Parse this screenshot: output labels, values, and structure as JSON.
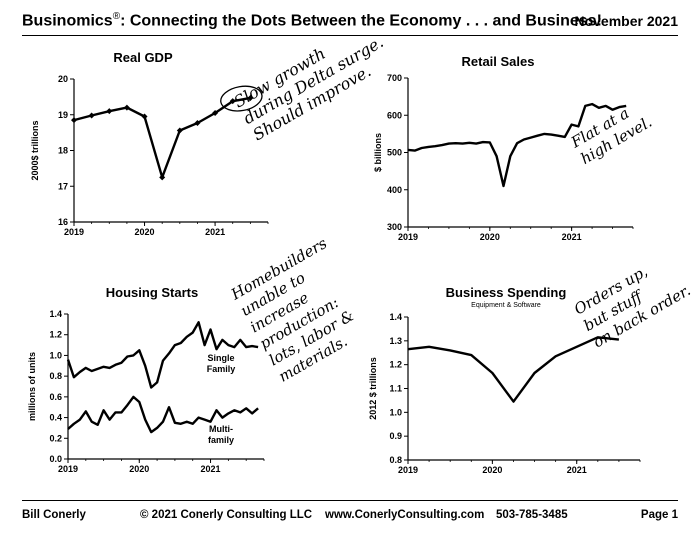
{
  "header": {
    "title_main": "Businomics",
    "title_mark": "®",
    "title_rest": ": Connecting the Dots Between the Economy . . . and Business!",
    "date": "November 2021"
  },
  "footer": {
    "author": "Bill Conerly",
    "copyright": "© 2021 Conerly Consulting LLC",
    "website": "www.ConerlyConsulting.com",
    "phone": "503-785-3485",
    "page": "Page 1"
  },
  "chart_data": [
    {
      "type": "line",
      "title": "Real GDP",
      "ylabel": "2000$ trillions",
      "ylim": [
        16,
        20
      ],
      "yticks": [
        "16",
        "17",
        "18",
        "19",
        "20"
      ],
      "xlim": [
        2019,
        2021.75
      ],
      "xticks": [
        "2019",
        "2020",
        "2021"
      ],
      "markers": true,
      "x": [
        2019.0,
        2019.25,
        2019.5,
        2019.75,
        2020.0,
        2020.25,
        2020.5,
        2020.75,
        2021.0,
        2021.25,
        2021.5
      ],
      "series": [
        {
          "values": [
            18.85,
            18.98,
            19.1,
            19.2,
            18.95,
            17.25,
            18.56,
            18.77,
            19.05,
            19.38,
            19.47
          ]
        }
      ],
      "annotation": {
        "lines": [
          "Slow growth",
          "during Delta surge.",
          "Should improve."
        ],
        "circled_points": [
          9,
          10
        ]
      }
    },
    {
      "type": "line",
      "title": "Retail Sales",
      "ylabel": "$ billions",
      "ylim": [
        300,
        700
      ],
      "yticks": [
        "300",
        "400",
        "500",
        "600",
        "700"
      ],
      "xlim": [
        2019,
        2021.75
      ],
      "xticks": [
        "2019",
        "2020",
        "2021"
      ],
      "x": [
        2019.0,
        2019.083,
        2019.167,
        2019.25,
        2019.333,
        2019.417,
        2019.5,
        2019.583,
        2019.667,
        2019.75,
        2019.833,
        2019.917,
        2020.0,
        2020.083,
        2020.167,
        2020.25,
        2020.333,
        2020.417,
        2020.5,
        2020.583,
        2020.667,
        2020.75,
        2020.833,
        2020.917,
        2021.0,
        2021.083,
        2021.167,
        2021.25,
        2021.333,
        2021.417,
        2021.5,
        2021.583,
        2021.667
      ],
      "series": [
        {
          "values": [
            507,
            505,
            512,
            515,
            517,
            520,
            524,
            525,
            524,
            526,
            524,
            528,
            527,
            490,
            410,
            490,
            525,
            535,
            540,
            545,
            550,
            548,
            545,
            542,
            575,
            570,
            625,
            630,
            620,
            625,
            615,
            622,
            625
          ]
        }
      ],
      "annotation": {
        "lines": [
          "Flat at a",
          "high level."
        ]
      }
    },
    {
      "type": "line",
      "title": "Housing Starts",
      "ylabel": "millions of units",
      "ylim": [
        0,
        1.4
      ],
      "yticks": [
        "0.0",
        "0.2",
        "0.4",
        "0.6",
        "0.8",
        "1.0",
        "1.2",
        "1.4"
      ],
      "xlim": [
        2019,
        2021.75
      ],
      "xticks": [
        "2019",
        "2020",
        "2021"
      ],
      "x": [
        2019.0,
        2019.083,
        2019.167,
        2019.25,
        2019.333,
        2019.417,
        2019.5,
        2019.583,
        2019.667,
        2019.75,
        2019.833,
        2019.917,
        2020.0,
        2020.083,
        2020.167,
        2020.25,
        2020.333,
        2020.417,
        2020.5,
        2020.583,
        2020.667,
        2020.75,
        2020.833,
        2020.917,
        2021.0,
        2021.083,
        2021.167,
        2021.25,
        2021.333,
        2021.417,
        2021.5,
        2021.583,
        2021.667
      ],
      "series": [
        {
          "name": "Single Family",
          "label_lines": [
            "Single",
            "Family"
          ],
          "values": [
            0.96,
            0.79,
            0.84,
            0.88,
            0.85,
            0.87,
            0.89,
            0.88,
            0.91,
            0.93,
            0.99,
            1.0,
            1.05,
            0.9,
            0.69,
            0.74,
            0.95,
            1.02,
            1.1,
            1.12,
            1.18,
            1.22,
            1.32,
            1.1,
            1.25,
            1.06,
            1.15,
            1.1,
            1.08,
            1.15,
            1.08,
            1.09,
            1.08
          ]
        },
        {
          "name": "Multi-family",
          "label_lines": [
            "Multi-",
            "family"
          ],
          "values": [
            0.29,
            0.34,
            0.38,
            0.46,
            0.36,
            0.33,
            0.47,
            0.38,
            0.45,
            0.45,
            0.52,
            0.6,
            0.55,
            0.38,
            0.26,
            0.3,
            0.36,
            0.5,
            0.35,
            0.34,
            0.36,
            0.34,
            0.4,
            0.38,
            0.36,
            0.47,
            0.4,
            0.44,
            0.47,
            0.45,
            0.49,
            0.44,
            0.49
          ]
        }
      ],
      "annotation": {
        "lines": [
          "Homebuilders",
          "unable to",
          "increase",
          "production:",
          "lots, labor &",
          "materials."
        ]
      }
    },
    {
      "type": "line",
      "title": "Business Spending",
      "subtitle": "Equipment & Software",
      "ylabel": "2012 $ trillions",
      "ylim": [
        0.8,
        1.4
      ],
      "yticks": [
        "0.8",
        "0.9",
        "1.0",
        "1.1",
        "1.2",
        "1.3",
        "1.4"
      ],
      "xlim": [
        2019,
        2021.75
      ],
      "xticks": [
        "2019",
        "2020",
        "2021"
      ],
      "x": [
        2019.0,
        2019.25,
        2019.5,
        2019.75,
        2020.0,
        2020.25,
        2020.5,
        2020.75,
        2021.0,
        2021.25,
        2021.5
      ],
      "series": [
        {
          "values": [
            1.265,
            1.275,
            1.26,
            1.24,
            1.165,
            1.045,
            1.165,
            1.235,
            1.275,
            1.315,
            1.305
          ]
        }
      ],
      "annotation": {
        "lines": [
          "Orders up,",
          "but stuff",
          "on back order."
        ]
      }
    }
  ]
}
